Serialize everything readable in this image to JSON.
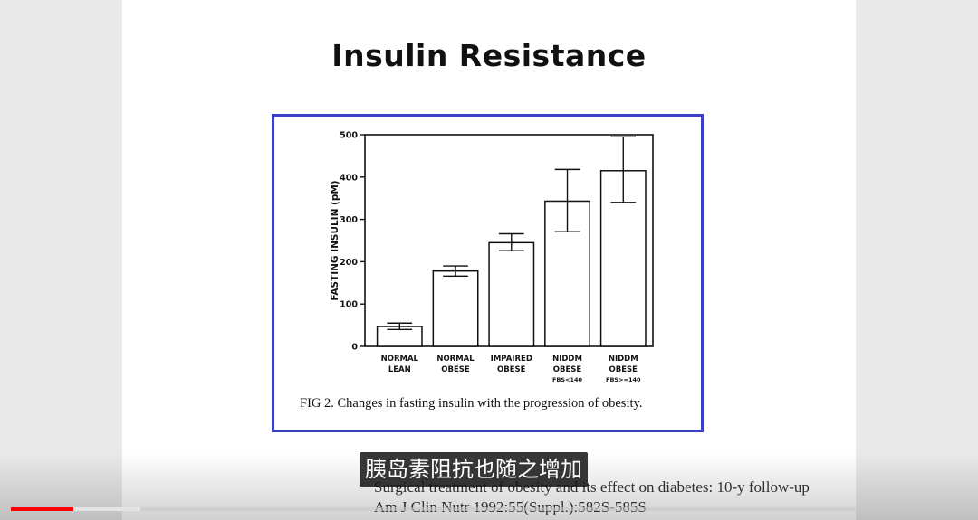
{
  "slide": {
    "title": "Insulin Resistance",
    "figure_caption": "FIG 2. Changes in fasting insulin with the progression of obesity.",
    "citation_line1": "Surgical treatment of obesity and its effect on diabetes: 10-y follow-up",
    "citation_line2": "Am J Clin Nutr 1992:55(Suppl.):582S-585S"
  },
  "video": {
    "subtitle": "胰岛素阻抗也随之增加",
    "progress_played": 0.065,
    "progress_buffered": 0.135,
    "colors": {
      "played": "#ff0000"
    }
  },
  "chart_data": {
    "type": "bar",
    "title": "",
    "ylabel": "FASTING INSULIN (pM)",
    "xlabel": "",
    "ylim": [
      0,
      500
    ],
    "yticks": [
      0,
      100,
      200,
      300,
      400,
      500
    ],
    "categories": [
      {
        "line1": "NORMAL",
        "line2": "LEAN",
        "line3": ""
      },
      {
        "line1": "NORMAL",
        "line2": "OBESE",
        "line3": ""
      },
      {
        "line1": "IMPAIRED",
        "line2": "OBESE",
        "line3": ""
      },
      {
        "line1": "NIDDM",
        "line2": "OBESE",
        "line3": "FBS<140"
      },
      {
        "line1": "NIDDM",
        "line2": "OBESE",
        "line3": "FBS>=140"
      }
    ],
    "values": [
      47,
      178,
      245,
      343,
      415
    ],
    "error_low": [
      40,
      166,
      226,
      271,
      340
    ],
    "error_high": [
      55,
      190,
      266,
      418,
      495
    ],
    "colors": {
      "frame": "#3a3fc4",
      "bars": "#ffffff",
      "stroke": "#111111"
    }
  }
}
